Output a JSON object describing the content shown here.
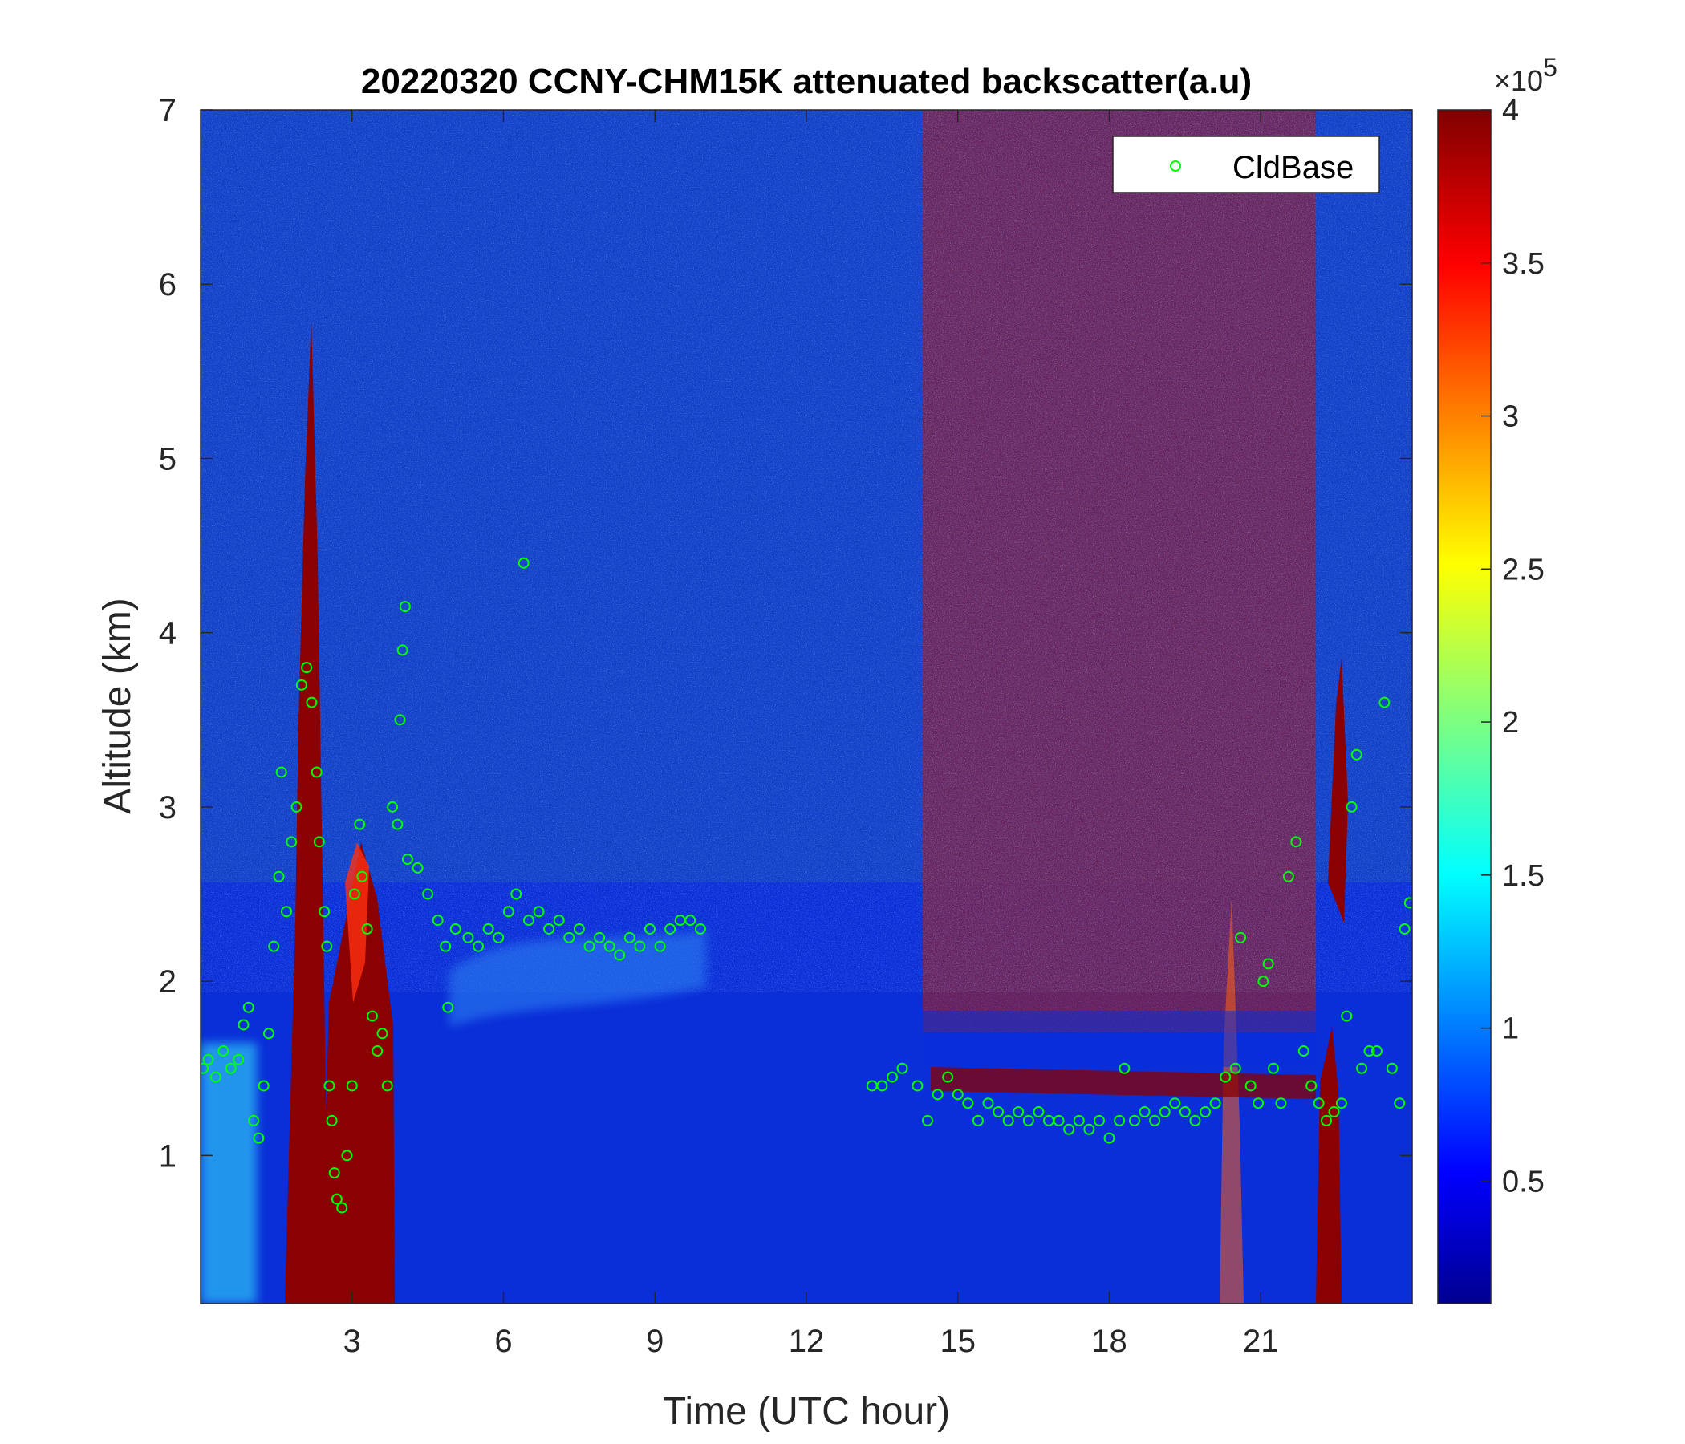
{
  "chart_data": {
    "type": "heatmap",
    "title": "20220320 CCNY-CHM15K attenuated backscatter(a.u)",
    "xlabel": "Time (UTC hour)",
    "ylabel": "Altitude (km)",
    "xlim": [
      0,
      24
    ],
    "ylim": [
      0.15,
      7
    ],
    "x_ticks": [
      3,
      6,
      9,
      12,
      15,
      18,
      21
    ],
    "x_tick_labels": [
      "3",
      "6",
      "9",
      "12",
      "15",
      "18",
      "21"
    ],
    "y_ticks": [
      1,
      2,
      3,
      4,
      5,
      6,
      7
    ],
    "y_tick_labels": [
      "1",
      "2",
      "3",
      "4",
      "5",
      "6",
      "7"
    ],
    "colormap": "jet",
    "colorbar": {
      "min": 0.1,
      "max": 4,
      "ticks": [
        0.5,
        1,
        1.5,
        2,
        2.5,
        3,
        3.5,
        4
      ],
      "tick_labels": [
        "0.5",
        "1",
        "1.5",
        "2",
        "2.5",
        "3",
        "3.5",
        "4"
      ],
      "multiplier_prefix": "×10",
      "multiplier_exponent": "5"
    },
    "legend": {
      "entries": [
        "CldBase"
      ],
      "placement": "top-right"
    },
    "series": [
      {
        "name": "CldBase",
        "marker": "open-circle",
        "color": "#00ff00",
        "points": [
          [
            0.05,
            1.5
          ],
          [
            0.15,
            1.55
          ],
          [
            0.3,
            1.45
          ],
          [
            0.45,
            1.6
          ],
          [
            0.6,
            1.5
          ],
          [
            0.75,
            1.55
          ],
          [
            0.85,
            1.75
          ],
          [
            0.95,
            1.85
          ],
          [
            1.05,
            1.2
          ],
          [
            1.15,
            1.1
          ],
          [
            1.25,
            1.4
          ],
          [
            1.35,
            1.7
          ],
          [
            1.45,
            2.2
          ],
          [
            1.55,
            2.6
          ],
          [
            1.6,
            3.2
          ],
          [
            1.7,
            2.4
          ],
          [
            1.8,
            2.8
          ],
          [
            1.9,
            3.0
          ],
          [
            2.0,
            3.7
          ],
          [
            2.1,
            3.8
          ],
          [
            2.2,
            3.6
          ],
          [
            2.3,
            3.2
          ],
          [
            2.35,
            2.8
          ],
          [
            2.45,
            2.4
          ],
          [
            2.5,
            2.2
          ],
          [
            2.55,
            1.4
          ],
          [
            2.6,
            1.2
          ],
          [
            2.65,
            0.9
          ],
          [
            2.7,
            0.75
          ],
          [
            2.8,
            0.7
          ],
          [
            2.9,
            1.0
          ],
          [
            3.0,
            1.4
          ],
          [
            3.05,
            2.5
          ],
          [
            3.15,
            2.9
          ],
          [
            3.2,
            2.6
          ],
          [
            3.3,
            2.3
          ],
          [
            3.4,
            1.8
          ],
          [
            3.5,
            1.6
          ],
          [
            3.6,
            1.7
          ],
          [
            3.7,
            1.4
          ],
          [
            3.8,
            3.0
          ],
          [
            3.9,
            2.9
          ],
          [
            3.95,
            3.5
          ],
          [
            4.0,
            3.9
          ],
          [
            4.05,
            4.15
          ],
          [
            4.1,
            2.7
          ],
          [
            4.3,
            2.65
          ],
          [
            4.5,
            2.5
          ],
          [
            4.7,
            2.35
          ],
          [
            4.85,
            2.2
          ],
          [
            4.9,
            1.85
          ],
          [
            5.05,
            2.3
          ],
          [
            5.3,
            2.25
          ],
          [
            5.5,
            2.2
          ],
          [
            5.7,
            2.3
          ],
          [
            5.9,
            2.25
          ],
          [
            6.1,
            2.4
          ],
          [
            6.25,
            2.5
          ],
          [
            6.4,
            4.4
          ],
          [
            6.5,
            2.35
          ],
          [
            6.7,
            2.4
          ],
          [
            6.9,
            2.3
          ],
          [
            7.1,
            2.35
          ],
          [
            7.3,
            2.25
          ],
          [
            7.5,
            2.3
          ],
          [
            7.7,
            2.2
          ],
          [
            7.9,
            2.25
          ],
          [
            8.1,
            2.2
          ],
          [
            8.3,
            2.15
          ],
          [
            8.5,
            2.25
          ],
          [
            8.7,
            2.2
          ],
          [
            8.9,
            2.3
          ],
          [
            9.1,
            2.2
          ],
          [
            9.3,
            2.3
          ],
          [
            9.5,
            2.35
          ],
          [
            9.7,
            2.35
          ],
          [
            9.9,
            2.3
          ],
          [
            13.3,
            1.4
          ],
          [
            13.5,
            1.4
          ],
          [
            13.7,
            1.45
          ],
          [
            13.9,
            1.5
          ],
          [
            14.2,
            1.4
          ],
          [
            14.4,
            1.2
          ],
          [
            14.6,
            1.35
          ],
          [
            14.8,
            1.45
          ],
          [
            15.0,
            1.35
          ],
          [
            15.2,
            1.3
          ],
          [
            15.4,
            1.2
          ],
          [
            15.6,
            1.3
          ],
          [
            15.8,
            1.25
          ],
          [
            16.0,
            1.2
          ],
          [
            16.2,
            1.25
          ],
          [
            16.4,
            1.2
          ],
          [
            16.6,
            1.25
          ],
          [
            16.8,
            1.2
          ],
          [
            17.0,
            1.2
          ],
          [
            17.2,
            1.15
          ],
          [
            17.4,
            1.2
          ],
          [
            17.6,
            1.15
          ],
          [
            17.8,
            1.2
          ],
          [
            18.0,
            1.1
          ],
          [
            18.2,
            1.2
          ],
          [
            18.3,
            1.5
          ],
          [
            18.5,
            1.2
          ],
          [
            18.7,
            1.25
          ],
          [
            18.9,
            1.2
          ],
          [
            19.1,
            1.25
          ],
          [
            19.3,
            1.3
          ],
          [
            19.5,
            1.25
          ],
          [
            19.7,
            1.2
          ],
          [
            19.9,
            1.25
          ],
          [
            20.1,
            1.3
          ],
          [
            20.3,
            1.45
          ],
          [
            20.5,
            1.5
          ],
          [
            20.6,
            2.25
          ],
          [
            20.8,
            1.4
          ],
          [
            20.95,
            1.3
          ],
          [
            21.05,
            2.0
          ],
          [
            21.15,
            2.1
          ],
          [
            21.25,
            1.5
          ],
          [
            21.4,
            1.3
          ],
          [
            21.55,
            2.6
          ],
          [
            21.7,
            2.8
          ],
          [
            21.85,
            1.6
          ],
          [
            22.0,
            1.4
          ],
          [
            22.15,
            1.3
          ],
          [
            22.3,
            1.2
          ],
          [
            22.45,
            1.25
          ],
          [
            22.6,
            1.3
          ],
          [
            22.7,
            1.8
          ],
          [
            22.8,
            3.0
          ],
          [
            22.9,
            3.3
          ],
          [
            23.0,
            1.5
          ],
          [
            23.15,
            1.6
          ],
          [
            23.3,
            1.6
          ],
          [
            23.45,
            3.6
          ],
          [
            23.6,
            1.5
          ],
          [
            23.75,
            1.3
          ],
          [
            23.85,
            2.3
          ],
          [
            23.95,
            2.45
          ]
        ]
      }
    ]
  }
}
